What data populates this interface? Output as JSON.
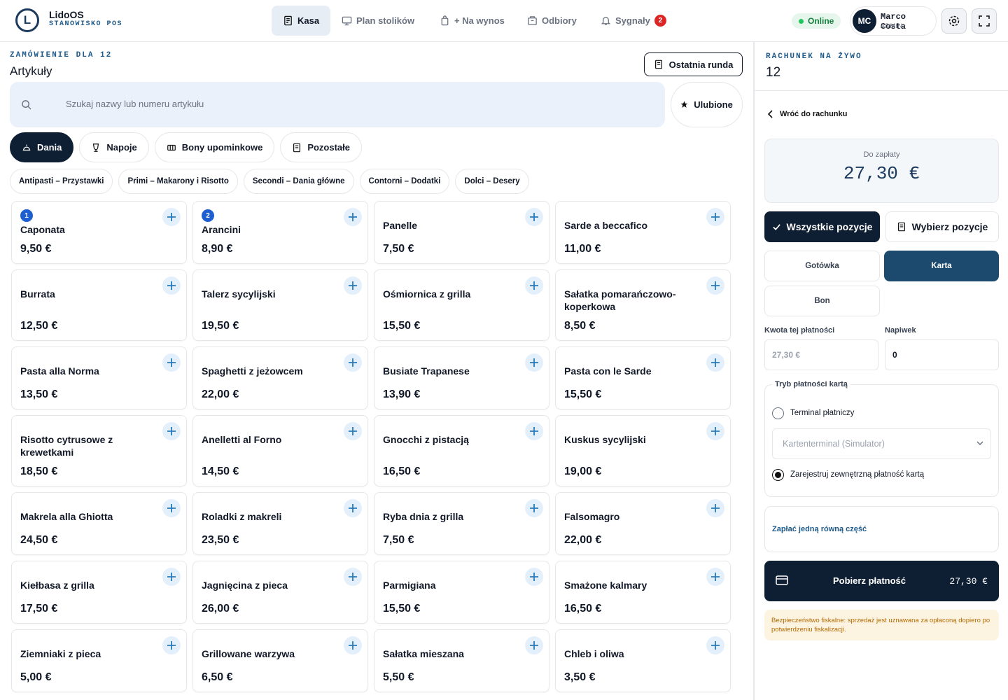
{
  "header": {
    "logo_mark": "L",
    "brand": "LidoOS",
    "subtitle": "STANOWISKO POS",
    "nav": [
      "Kasa",
      "Plan stolików",
      "+ Na wynos",
      "Odbiory",
      "Sygnały"
    ],
    "signals_count": 2,
    "status": "Online",
    "user_initials": "MC",
    "user_name": "Marco Costa",
    "user_role": "ADMIN"
  },
  "order": {
    "label": "ZAMÓWIENIE DLA 12",
    "heading": "Artykuły",
    "last_round": "Ostatnia runda",
    "search_placeholder": "Szukaj nazwy lub numeru artykułu",
    "favorites": "Ulubione",
    "tabs": [
      "Dania",
      "Napoje",
      "Bony upominkowe",
      "Pozostałe"
    ],
    "subcategories": [
      "Antipasti – Przystawki",
      "Primi – Makarony i Risotto",
      "Secondi – Dania główne",
      "Contorni – Dodatki",
      "Dolci – Desery"
    ],
    "items": [
      {
        "badge": 1,
        "name": "Caponata",
        "price": "9,50 €"
      },
      {
        "badge": 2,
        "name": "Arancini",
        "price": "8,90 €"
      },
      {
        "name": "Panelle",
        "price": "7,50 €"
      },
      {
        "name": "Sarde a beccafico",
        "price": "11,00 €"
      },
      {
        "name": "Burrata",
        "price": "12,50 €"
      },
      {
        "name": "Talerz sycylijski",
        "price": "19,50 €"
      },
      {
        "name": "Ośmiornica z grilla",
        "price": "15,50 €"
      },
      {
        "name": "Sałatka pomarańczowo-koperkowa",
        "price": "8,50 €"
      },
      {
        "name": "Pasta alla Norma",
        "price": "13,50 €"
      },
      {
        "name": "Spaghetti z jeżowcem",
        "price": "22,00 €"
      },
      {
        "name": "Busiate Trapanese",
        "price": "13,90 €"
      },
      {
        "name": "Pasta con le Sarde",
        "price": "15,50 €"
      },
      {
        "name": "Risotto cytrusowe z krewetkami",
        "price": "18,50 €"
      },
      {
        "name": "Anelletti al Forno",
        "price": "14,50 €"
      },
      {
        "name": "Gnocchi z pistacją",
        "price": "16,50 €"
      },
      {
        "name": "Kuskus sycylijski",
        "price": "19,00 €"
      },
      {
        "name": "Makrela alla Ghiotta",
        "price": "24,50 €"
      },
      {
        "name": "Roladki z makreli",
        "price": "23,50 €"
      },
      {
        "name": "Ryba dnia z grilla",
        "price": "7,50 €"
      },
      {
        "name": "Falsomagro",
        "price": "22,00 €"
      },
      {
        "name": "Kiełbasa z grilla",
        "price": "17,50 €"
      },
      {
        "name": "Jagnięcina z pieca",
        "price": "26,00 €"
      },
      {
        "name": "Parmigiana",
        "price": "15,50 €"
      },
      {
        "name": "Smażone kalmary",
        "price": "16,50 €"
      },
      {
        "name": "Ziemniaki z pieca",
        "price": "5,00 €"
      },
      {
        "name": "Grillowane warzywa",
        "price": "6,50 €"
      },
      {
        "name": "Sałatka mieszana",
        "price": "5,50 €"
      },
      {
        "name": "Chleb i oliwa",
        "price": "3,50 €"
      }
    ]
  },
  "bill": {
    "label": "RACHUNEK NA ŻYWO",
    "table": "12",
    "back": "Wróć do rachunku",
    "due_label": "Do zapłaty",
    "due": "27,30 €",
    "all_items": "Wszystkie pozycje",
    "choose_items": "Wybierz pozycje",
    "methods": [
      "Gotówka",
      "Karta",
      "Bon"
    ],
    "amount_label": "Kwota tej płatności",
    "amount_value": "27,30 €",
    "tip_label": "Napiwek",
    "tip_value": "0",
    "card_mode": "Tryb płatności kartą",
    "terminal_option": "Terminal płatniczy",
    "terminal_select": "Kartenterminal (Simulator)",
    "external_option": "Zarejestruj zewnętrzną płatność kartą",
    "split": "Zapłać jedną równą część",
    "pay": "Pobierz płatność",
    "pay_amount": "27,30 €",
    "notice": "Bezpieczeństwo fiskalne: sprzedaż jest uznawana za opłaconą dopiero po potwierdzeniu fiskalizacji."
  }
}
